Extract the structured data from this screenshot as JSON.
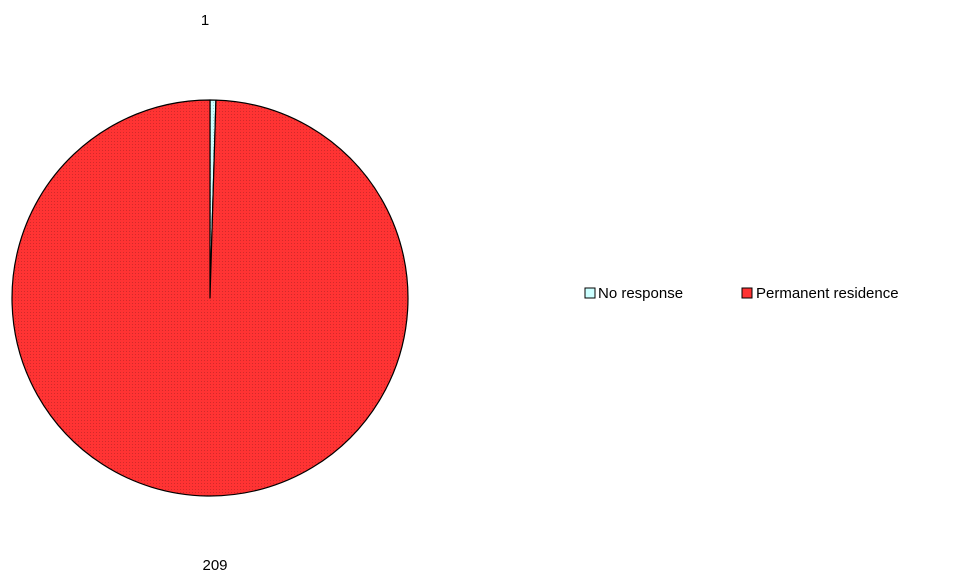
{
  "chart_data": {
    "type": "pie",
    "categories": [
      "No response",
      "Permanent residence"
    ],
    "values": [
      1,
      209
    ],
    "data_labels": [
      "1",
      "209"
    ],
    "colors": [
      "#ccffff",
      "#ff3333"
    ],
    "start": "12 o'clock",
    "direction": "clockwise",
    "legend": {
      "placement": "right",
      "items": [
        {
          "label": "No response",
          "color": "#ccffff"
        },
        {
          "label": "Permanent residence",
          "color": "#ff3333"
        }
      ]
    }
  }
}
